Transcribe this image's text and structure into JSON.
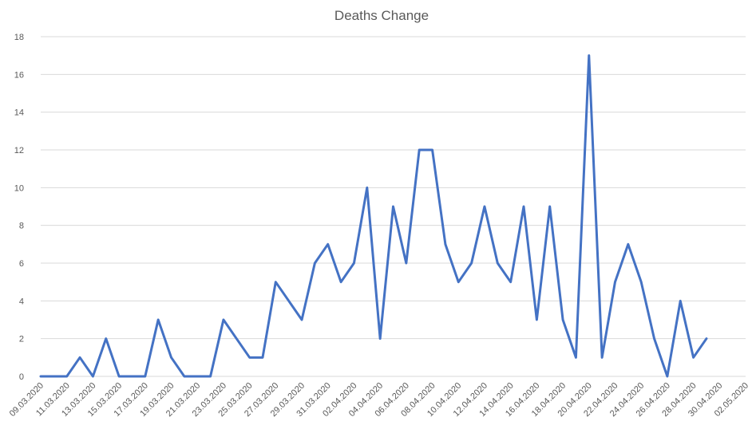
{
  "chart_data": {
    "type": "line",
    "title": "Deaths Change",
    "xlabel": "",
    "ylabel": "",
    "ylim": [
      0,
      18
    ],
    "yticks": [
      0,
      2,
      4,
      6,
      8,
      10,
      12,
      14,
      16,
      18
    ],
    "grid": true,
    "x": [
      "09.03.2020",
      "10.03.2020",
      "11.03.2020",
      "12.03.2020",
      "13.03.2020",
      "14.03.2020",
      "15.03.2020",
      "16.03.2020",
      "17.03.2020",
      "18.03.2020",
      "19.03.2020",
      "20.03.2020",
      "21.03.2020",
      "22.03.2020",
      "23.03.2020",
      "24.03.2020",
      "25.03.2020",
      "26.03.2020",
      "27.03.2020",
      "28.03.2020",
      "29.03.2020",
      "30.03.2020",
      "31.03.2020",
      "01.04.2020",
      "02.04.2020",
      "03.04.2020",
      "04.04.2020",
      "05.04.2020",
      "06.04.2020",
      "07.04.2020",
      "08.04.2020",
      "09.04.2020",
      "10.04.2020",
      "11.04.2020",
      "12.04.2020",
      "13.04.2020",
      "14.04.2020",
      "15.04.2020",
      "16.04.2020",
      "17.04.2020",
      "18.04.2020",
      "19.04.2020",
      "20.04.2020",
      "21.04.2020",
      "22.04.2020",
      "23.04.2020",
      "24.04.2020",
      "25.04.2020",
      "26.04.2020",
      "27.04.2020",
      "28.04.2020",
      "29.04.2020",
      "30.04.2020",
      "01.05.2020",
      "02.05.2020"
    ],
    "xtick_labels": [
      "09.03.2020",
      "11.03.2020",
      "13.03.2020",
      "15.03.2020",
      "17.03.2020",
      "19.03.2020",
      "21.03.2020",
      "23.03.2020",
      "25.03.2020",
      "27.03.2020",
      "29.03.2020",
      "31.03.2020",
      "02.04.2020",
      "04.04.2020",
      "06.04.2020",
      "08.04.2020",
      "10.04.2020",
      "12.04.2020",
      "14.04.2020",
      "16.04.2020",
      "18.04.2020",
      "20.04.2020",
      "22.04.2020",
      "24.04.2020",
      "26.04.2020",
      "28.04.2020",
      "30.04.2020",
      "02.05.2020"
    ],
    "series": [
      {
        "color": "#4472C4",
        "values": [
          0,
          0,
          0,
          1,
          0,
          2,
          0,
          0,
          0,
          3,
          1,
          0,
          0,
          0,
          3,
          2,
          1,
          1,
          5,
          4,
          3,
          6,
          7,
          5,
          6,
          10,
          2,
          9,
          6,
          12,
          12,
          7,
          5,
          6,
          9,
          6,
          5,
          9,
          3,
          9,
          3,
          1,
          17,
          1,
          5,
          7,
          5,
          2,
          0,
          4,
          1,
          2,
          null,
          null,
          null
        ]
      }
    ]
  }
}
